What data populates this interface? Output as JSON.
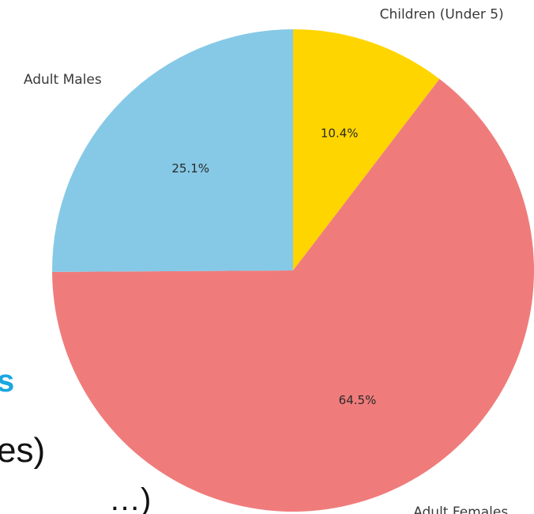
{
  "background_fragments": [
    "s",
    "es)",
    "…)"
  ],
  "chart_data": {
    "type": "pie",
    "categories": [
      "Children (Under 5)",
      "Adult Females",
      "Adult Males"
    ],
    "values": [
      10.4,
      64.5,
      25.1
    ],
    "value_labels": [
      "10.4%",
      "64.5%",
      "25.1%"
    ],
    "colors": [
      "#ffd500",
      "#ef7c7b",
      "#86c9e6"
    ],
    "start_angle_deg": 90,
    "direction": "clockwise"
  }
}
